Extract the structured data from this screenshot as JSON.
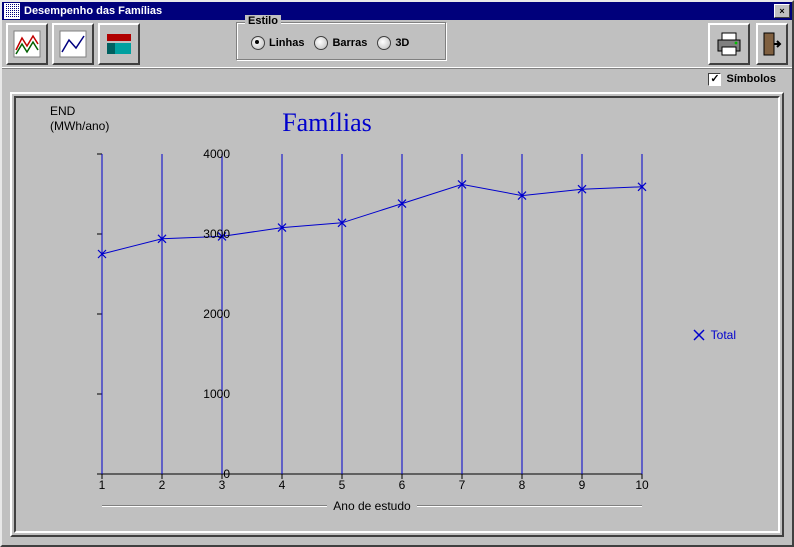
{
  "window": {
    "title": "Desempenho das Famílias",
    "close": "×"
  },
  "toolbar": {
    "group_label": "Estilo",
    "radios": [
      {
        "label": "Linhas",
        "checked": true
      },
      {
        "label": "Barras",
        "checked": false
      },
      {
        "label": "3D",
        "checked": false
      }
    ]
  },
  "symbols_checkbox": {
    "label": "Símbolos",
    "checked": true
  },
  "chart": {
    "type": "line",
    "title": "Famílias",
    "title_fontsize": 26,
    "title_color": "#0000cd",
    "y_label_line1": "END",
    "y_label_line2": "(MWh/ano)",
    "x_axis_title": "Ano de estudo",
    "x_values": [
      1,
      2,
      3,
      4,
      5,
      6,
      7,
      8,
      9,
      10
    ],
    "y_values": [
      2750,
      2940,
      2970,
      3080,
      3140,
      3380,
      3620,
      3480,
      3560,
      3590
    ],
    "series_color": "#0000cd",
    "line_width": 1,
    "marker": "x",
    "legend_label": "Total",
    "ylim": [
      0,
      4000
    ],
    "ytick_step": 1000,
    "xlim": [
      1,
      10
    ],
    "axis_color": "#000000",
    "tick_ref_color": "#0000cd",
    "background_color": "#c0c0c0"
  }
}
